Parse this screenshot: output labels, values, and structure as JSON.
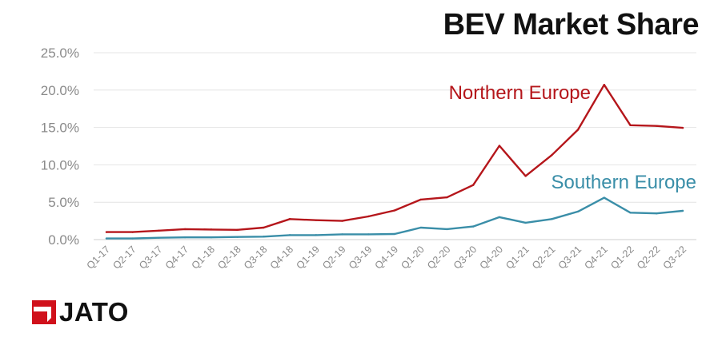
{
  "title": "BEV Market Share",
  "brand": {
    "logo_text": "JATO",
    "logo_color": "#d0111b"
  },
  "chart_data": {
    "type": "line",
    "title": "BEV Market Share",
    "categories": [
      "Q1-17",
      "Q2-17",
      "Q3-17",
      "Q4-17",
      "Q1-18",
      "Q2-18",
      "Q3-18",
      "Q4-18",
      "Q1-19",
      "Q2-19",
      "Q3-19",
      "Q4-19",
      "Q1-20",
      "Q2-20",
      "Q3-20",
      "Q4-20",
      "Q1-21",
      "Q2-21",
      "Q3-21",
      "Q4-21",
      "Q1-22",
      "Q2-22",
      "Q3-22"
    ],
    "y_ticks": [
      "0.0%",
      "5.0%",
      "10.0%",
      "15.0%",
      "20.0%",
      "25.0%"
    ],
    "ylim": [
      0,
      25
    ],
    "grid": true,
    "legend": "inline labels",
    "series": [
      {
        "name": "Northern Europe",
        "color": "#b5161b",
        "values": [
          1.0,
          1.0,
          1.2,
          1.4,
          1.35,
          1.3,
          1.6,
          2.75,
          2.6,
          2.5,
          3.1,
          3.9,
          5.35,
          5.65,
          7.3,
          12.55,
          8.5,
          11.3,
          14.7,
          20.7,
          15.3,
          15.2,
          14.95
        ]
      },
      {
        "name": "Southern Europe",
        "color": "#3a8ea8",
        "values": [
          0.15,
          0.15,
          0.25,
          0.3,
          0.3,
          0.35,
          0.4,
          0.6,
          0.6,
          0.7,
          0.7,
          0.75,
          1.6,
          1.4,
          1.75,
          3.0,
          2.25,
          2.75,
          3.75,
          5.6,
          3.6,
          3.5,
          3.85
        ]
      }
    ]
  }
}
